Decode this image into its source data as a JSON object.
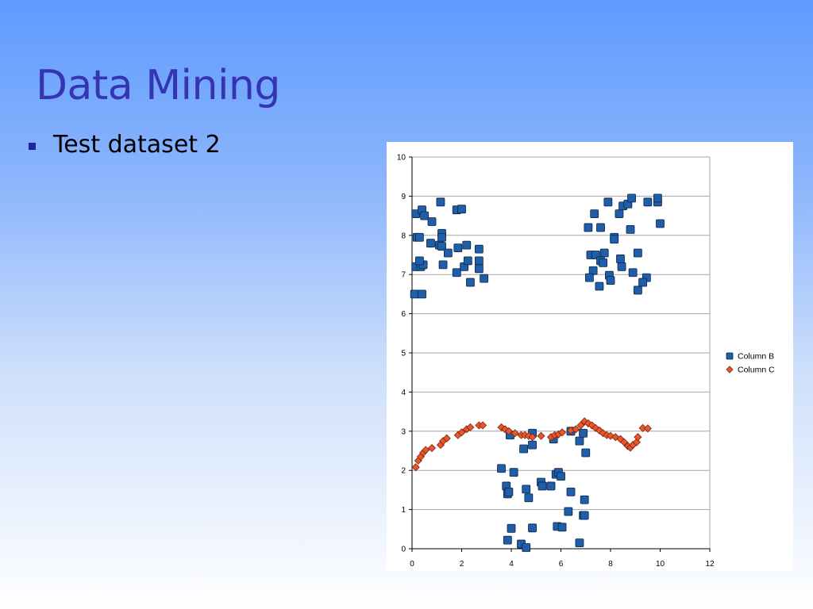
{
  "slide": {
    "title": "Data Mining",
    "bullets": [
      "Test dataset 2"
    ]
  },
  "colors": {
    "column_b": "#1f5ea8",
    "column_c": "#e8572a",
    "grid": "#a6a6a6",
    "title": "#3535b4"
  },
  "chart_data": {
    "type": "scatter",
    "title": "",
    "xlabel": "",
    "ylabel": "",
    "xlim": [
      0,
      12
    ],
    "ylim": [
      0,
      10
    ],
    "x_ticks": [
      0,
      2,
      4,
      6,
      8,
      10,
      12
    ],
    "y_ticks": [
      0,
      1,
      2,
      3,
      4,
      5,
      6,
      7,
      8,
      9,
      10
    ],
    "grid": "horizontal",
    "legend_position": "right",
    "series": [
      {
        "name": "Column B",
        "marker": "square",
        "points": [
          [
            0.1,
            6.5
          ],
          [
            0.4,
            6.5
          ],
          [
            0.15,
            7.2
          ],
          [
            0.35,
            7.2
          ],
          [
            0.45,
            7.25
          ],
          [
            0.3,
            7.35
          ],
          [
            0.2,
            7.95
          ],
          [
            0.3,
            7.95
          ],
          [
            0.15,
            8.55
          ],
          [
            0.4,
            8.65
          ],
          [
            0.5,
            8.5
          ],
          [
            0.8,
            8.35
          ],
          [
            0.75,
            7.8
          ],
          [
            1.15,
            8.85
          ],
          [
            1.2,
            8.05
          ],
          [
            1.2,
            7.95
          ],
          [
            1.1,
            7.75
          ],
          [
            1.2,
            7.72
          ],
          [
            1.45,
            7.55
          ],
          [
            1.25,
            7.25
          ],
          [
            1.8,
            8.65
          ],
          [
            2.0,
            8.67
          ],
          [
            1.85,
            7.68
          ],
          [
            2.2,
            7.75
          ],
          [
            1.8,
            7.05
          ],
          [
            2.1,
            7.2
          ],
          [
            2.25,
            7.35
          ],
          [
            2.35,
            6.8
          ],
          [
            2.7,
            7.65
          ],
          [
            2.7,
            7.35
          ],
          [
            2.7,
            7.15
          ],
          [
            2.9,
            6.9
          ],
          [
            7.1,
            8.2
          ],
          [
            7.35,
            8.55
          ],
          [
            7.9,
            8.85
          ],
          [
            8.35,
            8.55
          ],
          [
            8.5,
            8.75
          ],
          [
            8.7,
            8.8
          ],
          [
            8.85,
            8.95
          ],
          [
            9.5,
            8.85
          ],
          [
            9.9,
            8.85
          ],
          [
            9.9,
            8.95
          ],
          [
            10.0,
            8.3
          ],
          [
            8.8,
            8.15
          ],
          [
            7.6,
            8.2
          ],
          [
            8.15,
            7.95
          ],
          [
            8.15,
            7.9
          ],
          [
            7.2,
            7.5
          ],
          [
            7.4,
            7.5
          ],
          [
            7.75,
            7.55
          ],
          [
            7.6,
            7.35
          ],
          [
            7.7,
            7.3
          ],
          [
            7.3,
            7.1
          ],
          [
            7.15,
            6.92
          ],
          [
            7.95,
            6.98
          ],
          [
            8.0,
            6.85
          ],
          [
            7.55,
            6.7
          ],
          [
            8.4,
            7.4
          ],
          [
            8.45,
            7.2
          ],
          [
            9.1,
            7.55
          ],
          [
            8.9,
            7.05
          ],
          [
            9.45,
            6.92
          ],
          [
            9.3,
            6.8
          ],
          [
            9.1,
            6.6
          ],
          [
            3.6,
            2.05
          ],
          [
            3.8,
            1.6
          ],
          [
            3.85,
            1.4
          ],
          [
            3.9,
            1.45
          ],
          [
            3.95,
            2.9
          ],
          [
            4.1,
            1.95
          ],
          [
            4.0,
            0.52
          ],
          [
            3.85,
            0.22
          ],
          [
            4.4,
            0.12
          ],
          [
            4.6,
            0.03
          ],
          [
            4.5,
            2.55
          ],
          [
            4.85,
            2.65
          ],
          [
            4.85,
            2.95
          ],
          [
            4.6,
            1.52
          ],
          [
            4.7,
            1.3
          ],
          [
            5.2,
            1.7
          ],
          [
            5.25,
            1.6
          ],
          [
            5.6,
            1.6
          ],
          [
            4.85,
            0.53
          ],
          [
            5.7,
            2.8
          ],
          [
            5.8,
            1.9
          ],
          [
            5.9,
            1.95
          ],
          [
            6.0,
            1.85
          ],
          [
            5.85,
            0.57
          ],
          [
            6.05,
            0.55
          ],
          [
            6.3,
            0.95
          ],
          [
            6.4,
            1.45
          ],
          [
            6.4,
            3.0
          ],
          [
            6.75,
            2.75
          ],
          [
            6.9,
            2.95
          ],
          [
            7.0,
            2.45
          ],
          [
            6.95,
            1.25
          ],
          [
            6.9,
            0.85
          ],
          [
            6.95,
            0.85
          ],
          [
            6.75,
            0.15
          ]
        ]
      },
      {
        "name": "Column C",
        "marker": "diamond",
        "points": [
          [
            0.15,
            2.08
          ],
          [
            0.25,
            2.25
          ],
          [
            0.35,
            2.35
          ],
          [
            0.45,
            2.45
          ],
          [
            0.55,
            2.52
          ],
          [
            0.8,
            2.57
          ],
          [
            1.15,
            2.65
          ],
          [
            1.25,
            2.75
          ],
          [
            1.4,
            2.82
          ],
          [
            1.85,
            2.9
          ],
          [
            2.0,
            2.97
          ],
          [
            2.2,
            3.05
          ],
          [
            2.35,
            3.1
          ],
          [
            2.7,
            3.15
          ],
          [
            2.85,
            3.15
          ],
          [
            3.6,
            3.1
          ],
          [
            3.75,
            3.05
          ],
          [
            3.9,
            3.0
          ],
          [
            4.15,
            2.95
          ],
          [
            4.4,
            2.9
          ],
          [
            4.55,
            2.9
          ],
          [
            4.7,
            2.88
          ],
          [
            4.85,
            2.85
          ],
          [
            5.2,
            2.88
          ],
          [
            5.6,
            2.85
          ],
          [
            5.75,
            2.9
          ],
          [
            5.9,
            2.92
          ],
          [
            6.05,
            2.97
          ],
          [
            6.4,
            3.02
          ],
          [
            6.6,
            3.05
          ],
          [
            6.8,
            3.15
          ],
          [
            6.95,
            3.25
          ],
          [
            7.1,
            3.2
          ],
          [
            7.25,
            3.15
          ],
          [
            7.4,
            3.08
          ],
          [
            7.55,
            3.02
          ],
          [
            7.7,
            2.95
          ],
          [
            7.85,
            2.9
          ],
          [
            8.0,
            2.88
          ],
          [
            8.2,
            2.85
          ],
          [
            8.4,
            2.8
          ],
          [
            8.55,
            2.72
          ],
          [
            8.7,
            2.62
          ],
          [
            8.8,
            2.58
          ],
          [
            8.9,
            2.65
          ],
          [
            9.05,
            2.72
          ],
          [
            9.1,
            2.85
          ],
          [
            9.3,
            3.08
          ],
          [
            9.5,
            3.07
          ]
        ]
      }
    ]
  }
}
